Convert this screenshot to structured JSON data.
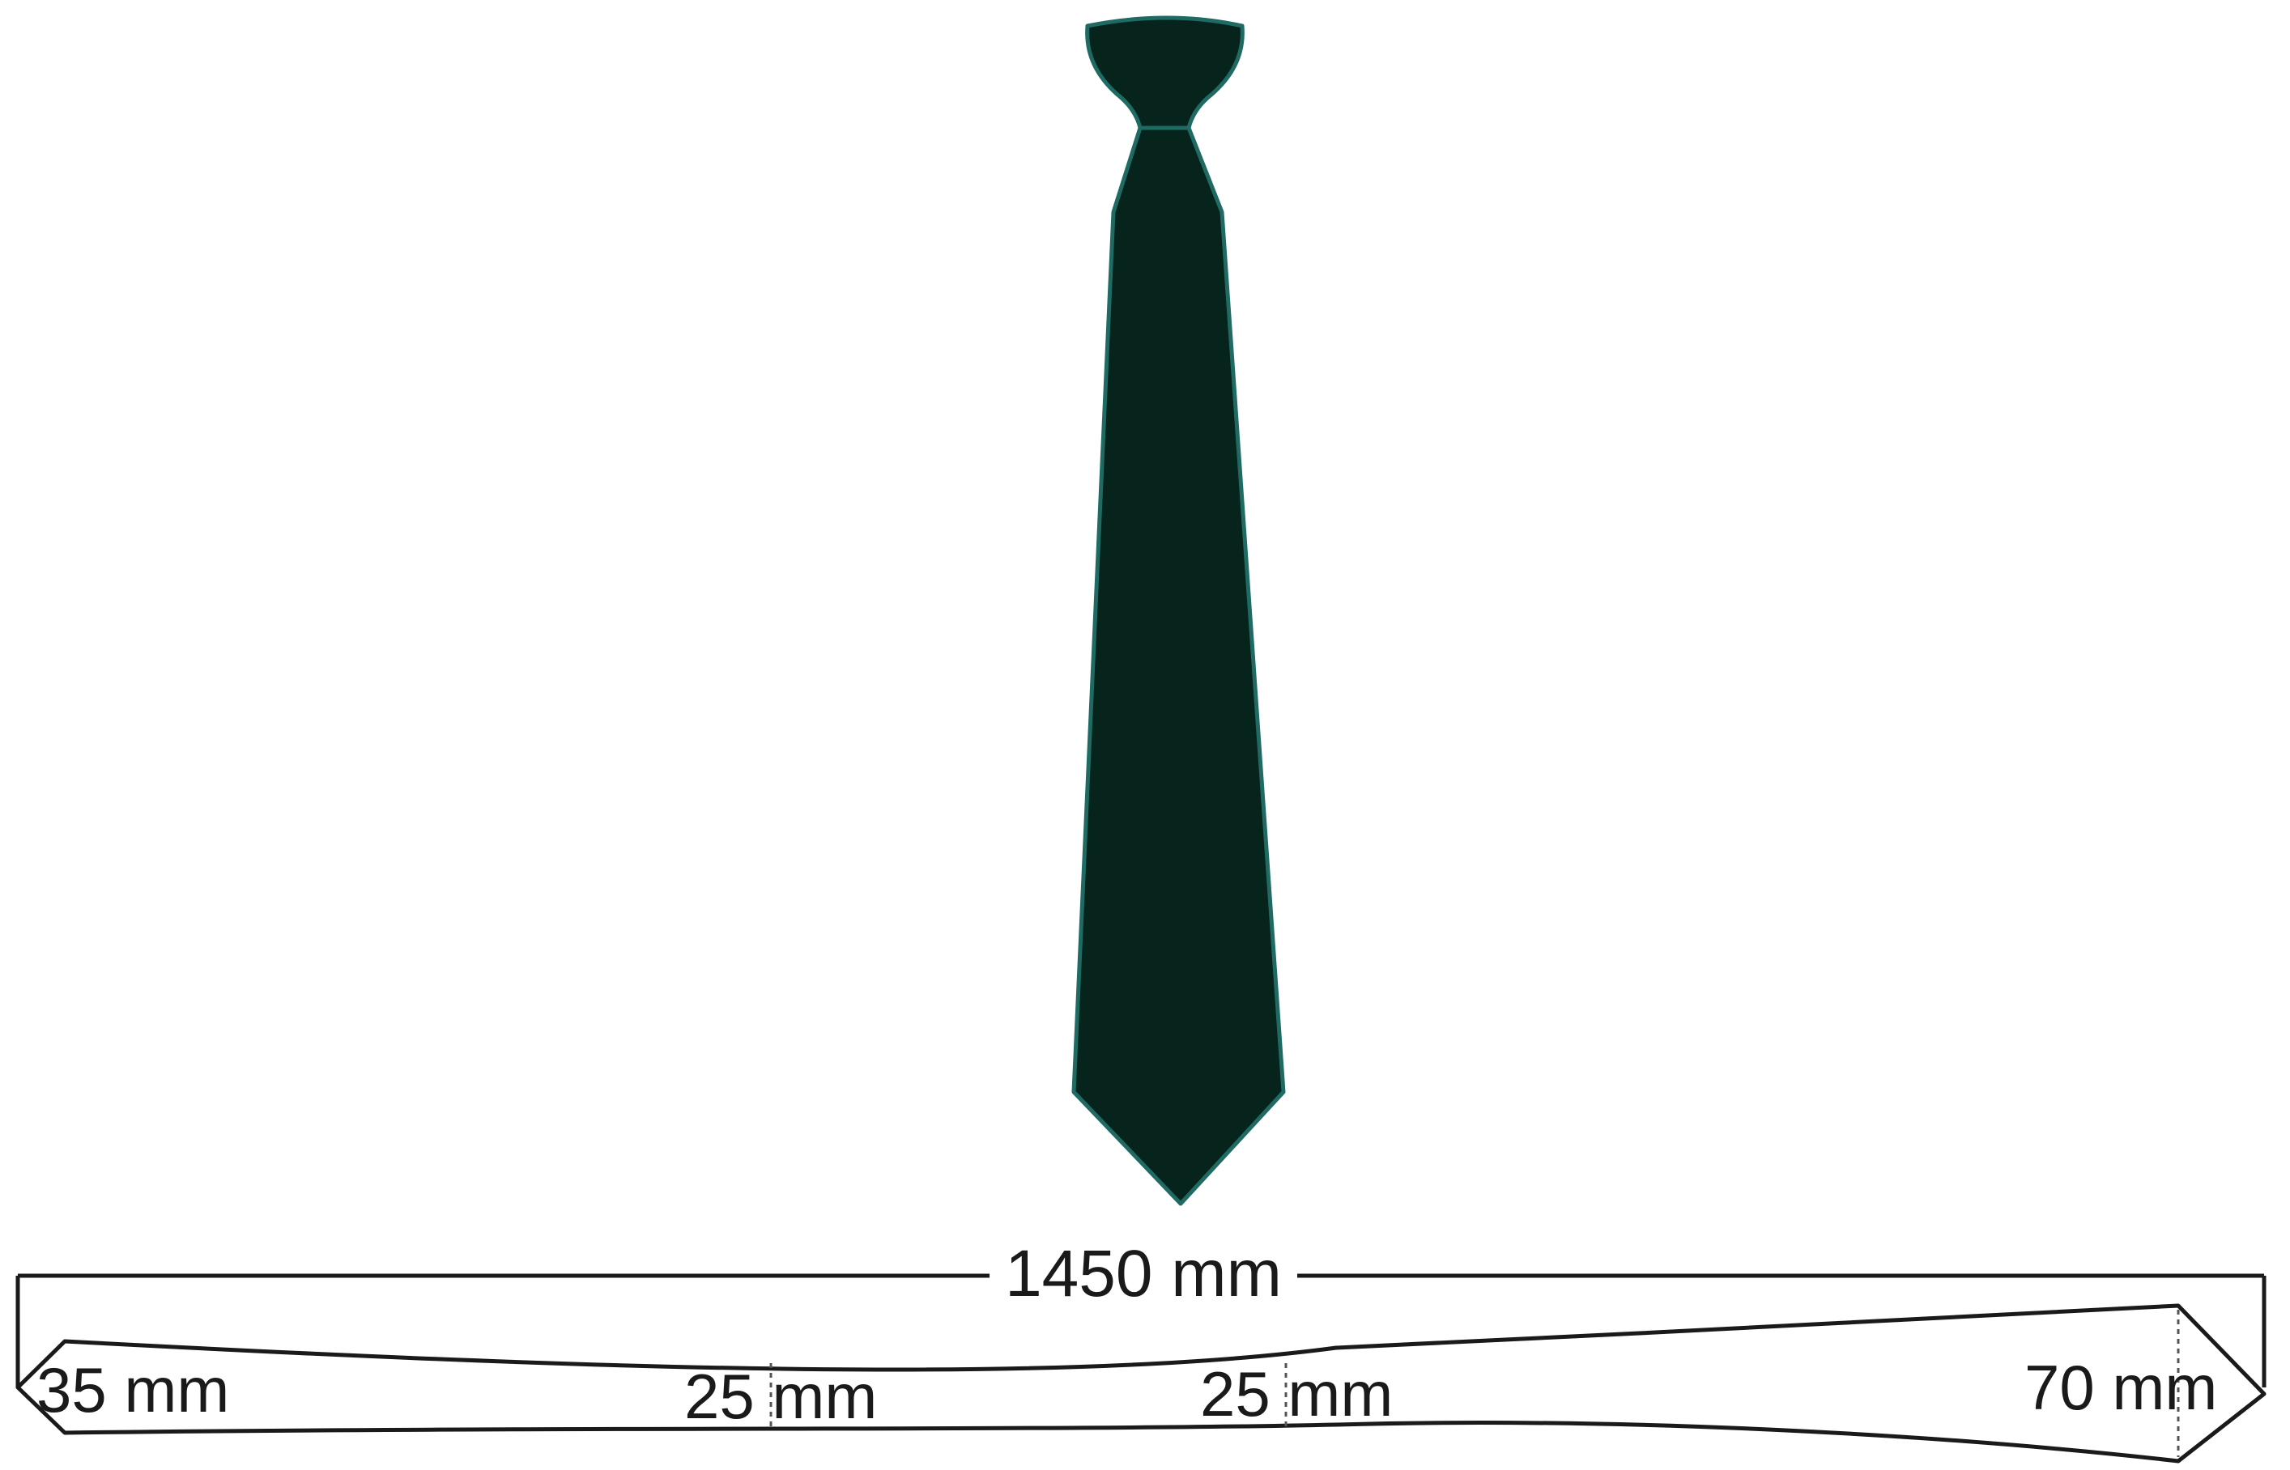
{
  "diagram": {
    "total_length": {
      "label": "1450 mm"
    },
    "widths": [
      {
        "label": "35 mm"
      },
      {
        "label": "25 mm"
      },
      {
        "label": "25 mm"
      },
      {
        "label": "70 mm"
      }
    ]
  },
  "colors": {
    "tie_fill": "#06231c",
    "tie_outline": "#1f6b63",
    "line": "#1a1a1a",
    "background": "#ffffff"
  }
}
